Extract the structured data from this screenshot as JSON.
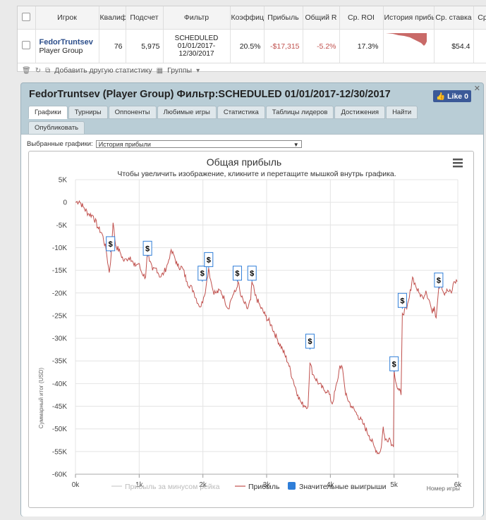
{
  "stats_table": {
    "headers": [
      "Игрок",
      "Квалиф",
      "Подсчет",
      "Фильтр",
      "Коэффиц",
      "Прибыль",
      "Общий R",
      "Ср. ROI",
      "История прибыли",
      "Ср. ставка",
      "Ср"
    ],
    "row": {
      "player_name": "FedorTruntsev",
      "player_group": "Player Group",
      "qual": "76",
      "count": "5,975",
      "filter_line1": "SCHEDULED",
      "filter_line2": "01/01/2017-",
      "filter_line3": "12/30/2017",
      "coef": "20.5%",
      "profit": "-$17,315",
      "total_roi": "-5.2%",
      "avg_roi": "17.3%",
      "avg_stake": "$54.4"
    },
    "toolbar": {
      "add_stats": "Добавить другую статистику",
      "groups": "Группы"
    }
  },
  "panel": {
    "title": "FedorTruntsev (Player Group) Фильтр:SCHEDULED 01/01/2017-12/30/2017",
    "like_label": "Like 0",
    "tabs": [
      "Графики",
      "Турниры",
      "Оппоненты",
      "Любимые игры",
      "Статистика",
      "Таблицы лидеров",
      "Достижения",
      "Найти",
      "Опубликовать"
    ],
    "selected_charts_label": "Выбранные графики:",
    "selected_chart_value": "История прибыли"
  },
  "chart_data": {
    "type": "line",
    "title": "Общая прибыль",
    "subtitle": "Чтобы увеличить изображение, кликните и перетащите мышкой внутрь графика.",
    "xlabel": "Номер игры",
    "ylabel": "Суммарный итог (USD)",
    "xlim": [
      0,
      6000
    ],
    "ylim": [
      -60000,
      5000
    ],
    "x_ticks": [
      "0k",
      "1k",
      "2k",
      "3k",
      "4k",
      "5k",
      "6k"
    ],
    "y_ticks": [
      "5K",
      "0",
      "-5K",
      "-10K",
      "-15K",
      "-20K",
      "-25K",
      "-30K",
      "-35K",
      "-40K",
      "-45K",
      "-50K",
      "-55K",
      "-60K"
    ],
    "legend": [
      "Прибыль за минусом рейка",
      "Прибыль",
      "Значительные выигрыши"
    ],
    "legend_position": "bottom",
    "grid": true,
    "series": [
      {
        "name": "Прибыль",
        "color": "#c0504d",
        "points": [
          [
            0,
            0
          ],
          [
            60,
            300
          ],
          [
            120,
            -1000
          ],
          [
            200,
            -2500
          ],
          [
            280,
            -3000
          ],
          [
            350,
            -5500
          ],
          [
            420,
            -7000
          ],
          [
            480,
            -10500
          ],
          [
            530,
            -15500
          ],
          [
            560,
            -11500
          ],
          [
            590,
            -4500
          ],
          [
            630,
            -9500
          ],
          [
            700,
            -11000
          ],
          [
            760,
            -13000
          ],
          [
            800,
            -12500
          ],
          [
            860,
            -12000
          ],
          [
            920,
            -14000
          ],
          [
            990,
            -13500
          ],
          [
            1040,
            -15500
          ],
          [
            1100,
            -16500
          ],
          [
            1130,
            -10500
          ],
          [
            1160,
            -13000
          ],
          [
            1210,
            -15000
          ],
          [
            1270,
            -14500
          ],
          [
            1330,
            -16500
          ],
          [
            1390,
            -15500
          ],
          [
            1450,
            -13500
          ],
          [
            1490,
            -11000
          ],
          [
            1540,
            -11500
          ],
          [
            1600,
            -14000
          ],
          [
            1680,
            -14500
          ],
          [
            1750,
            -17500
          ],
          [
            1850,
            -19500
          ],
          [
            1930,
            -22500
          ],
          [
            1970,
            -23000
          ],
          [
            2010,
            -21000
          ],
          [
            2050,
            -18500
          ],
          [
            2090,
            -14500
          ],
          [
            2120,
            -17000
          ],
          [
            2160,
            -19500
          ],
          [
            2200,
            -20000
          ],
          [
            2280,
            -19500
          ],
          [
            2340,
            -21500
          ],
          [
            2400,
            -23500
          ],
          [
            2440,
            -21500
          ],
          [
            2470,
            -20500
          ],
          [
            2520,
            -19500
          ],
          [
            2550,
            -17500
          ],
          [
            2590,
            -20500
          ],
          [
            2640,
            -22000
          ],
          [
            2700,
            -23500
          ],
          [
            2750,
            -21500
          ],
          [
            2770,
            -17500
          ],
          [
            2820,
            -20500
          ],
          [
            2900,
            -23000
          ],
          [
            2980,
            -25000
          ],
          [
            3070,
            -27000
          ],
          [
            3160,
            -30000
          ],
          [
            3250,
            -32500
          ],
          [
            3340,
            -35500
          ],
          [
            3410,
            -39000
          ],
          [
            3490,
            -42500
          ],
          [
            3550,
            -44500
          ],
          [
            3650,
            -45000
          ],
          [
            3680,
            -35500
          ],
          [
            3730,
            -38000
          ],
          [
            3820,
            -40000
          ],
          [
            3900,
            -41500
          ],
          [
            3960,
            -41500
          ],
          [
            4030,
            -44500
          ],
          [
            4110,
            -39500
          ],
          [
            4150,
            -36000
          ],
          [
            4190,
            -36500
          ],
          [
            4240,
            -42500
          ],
          [
            4330,
            -45000
          ],
          [
            4430,
            -47000
          ],
          [
            4520,
            -49000
          ],
          [
            4610,
            -51500
          ],
          [
            4690,
            -54000
          ],
          [
            4760,
            -55500
          ],
          [
            4800,
            -54000
          ],
          [
            4830,
            -49500
          ],
          [
            4860,
            -52500
          ],
          [
            4930,
            -52000
          ],
          [
            4970,
            -53500
          ],
          [
            4990,
            -54000
          ],
          [
            5000,
            -37000
          ],
          [
            5050,
            -41000
          ],
          [
            5080,
            -41500
          ],
          [
            5110,
            -42500
          ],
          [
            5130,
            -24500
          ],
          [
            5200,
            -23500
          ],
          [
            5240,
            -21000
          ],
          [
            5290,
            -16500
          ],
          [
            5340,
            -18500
          ],
          [
            5390,
            -20000
          ],
          [
            5450,
            -21000
          ],
          [
            5500,
            -19500
          ],
          [
            5560,
            -22000
          ],
          [
            5600,
            -24500
          ],
          [
            5630,
            -23000
          ],
          [
            5660,
            -25500
          ],
          [
            5700,
            -19000
          ],
          [
            5730,
            -17500
          ],
          [
            5780,
            -20000
          ],
          [
            5840,
            -19500
          ],
          [
            5900,
            -20000
          ],
          [
            5940,
            -17500
          ],
          [
            5990,
            -17500
          ]
        ]
      }
    ],
    "significant_wins": [
      [
        550,
        -11000
      ],
      [
        1130,
        -12000
      ],
      [
        1990,
        -17500
      ],
      [
        2090,
        -14500
      ],
      [
        2540,
        -17500
      ],
      [
        2770,
        -17500
      ],
      [
        3680,
        -32500
      ],
      [
        5000,
        -37500
      ],
      [
        5130,
        -23500
      ],
      [
        5700,
        -19000
      ]
    ],
    "win_marker_label": "$"
  }
}
